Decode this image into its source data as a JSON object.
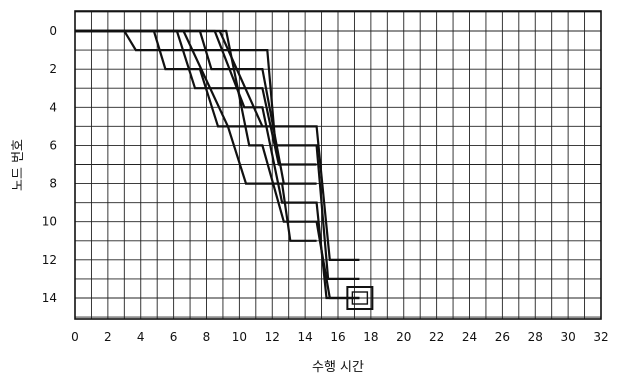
{
  "chart_data": {
    "type": "line",
    "title": "",
    "xlabel": "수행 시간",
    "ylabel": "노드 번호",
    "xlim": [
      0,
      32
    ],
    "ylim": [
      0,
      14.5
    ],
    "y_inverted": true,
    "grid": true,
    "x_ticks": [
      0,
      2,
      4,
      6,
      8,
      10,
      12,
      14,
      16,
      18,
      20,
      22,
      24,
      26,
      28,
      30,
      32
    ],
    "y_ticks": [
      0,
      2,
      4,
      6,
      8,
      10,
      12,
      14
    ],
    "grid_step": {
      "x": 1,
      "y": 1
    },
    "color": "#111111",
    "series": [
      {
        "points": [
          [
            0,
            0
          ],
          [
            8.8,
            0
          ],
          [
            11.4,
            5
          ],
          [
            14.7,
            5
          ],
          [
            15.5,
            12
          ],
          [
            17.3,
            12
          ]
        ]
      },
      {
        "points": [
          [
            0,
            0
          ],
          [
            3,
            0
          ],
          [
            3.7,
            1
          ],
          [
            11.7,
            1
          ],
          [
            12.2,
            6
          ],
          [
            14.7,
            6
          ],
          [
            15.4,
            13
          ],
          [
            17.3,
            13
          ]
        ]
      },
      {
        "points": [
          [
            0,
            0
          ],
          [
            2.5,
            0
          ],
          [
            8.5,
            0
          ],
          [
            10.3,
            4
          ],
          [
            11.4,
            4
          ],
          [
            12.6,
            9
          ],
          [
            14.7,
            9
          ],
          [
            15.3,
            14
          ],
          [
            17.3,
            14
          ]
        ]
      },
      {
        "points": [
          [
            0,
            0
          ],
          [
            4.8,
            0
          ],
          [
            5.5,
            2
          ],
          [
            7.6,
            2
          ],
          [
            8.7,
            5
          ],
          [
            11.4,
            5
          ]
        ]
      },
      {
        "points": [
          [
            0,
            0
          ],
          [
            6.2,
            0
          ],
          [
            7.3,
            3
          ],
          [
            11.4,
            3
          ],
          [
            12.4,
            7
          ],
          [
            14.7,
            7
          ]
        ]
      },
      {
        "points": [
          [
            0,
            0
          ],
          [
            7.6,
            0
          ],
          [
            8.3,
            2
          ],
          [
            11.4,
            2
          ],
          [
            12.7,
            8
          ],
          [
            14.7,
            8
          ]
        ]
      },
      {
        "points": [
          [
            0,
            0
          ],
          [
            6.6,
            0
          ],
          [
            9.3,
            5
          ],
          [
            10.4,
            8
          ],
          [
            12.6,
            8
          ],
          [
            13.1,
            11
          ],
          [
            14.7,
            11
          ]
        ]
      },
      {
        "points": [
          [
            0,
            0
          ],
          [
            9.2,
            0
          ],
          [
            10.6,
            6
          ],
          [
            11.4,
            6
          ],
          [
            12.7,
            10
          ],
          [
            14.7,
            10
          ],
          [
            15.5,
            14
          ],
          [
            17.3,
            14
          ]
        ]
      }
    ],
    "annotations": [
      {
        "shape": "square",
        "x": 17.3,
        "y": 14
      }
    ]
  }
}
